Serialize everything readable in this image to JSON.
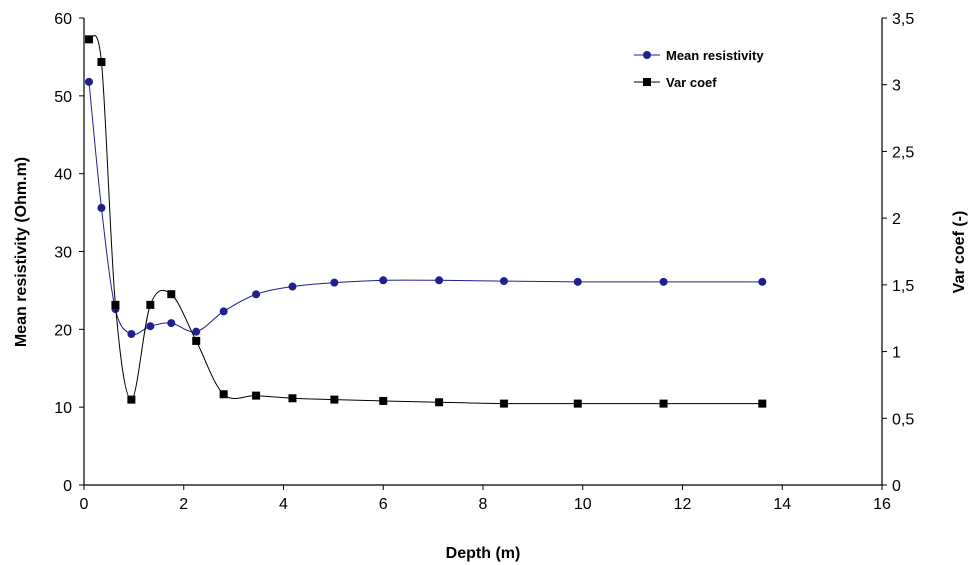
{
  "chart_data": {
    "type": "line",
    "xlabel": "Depth (m)",
    "ylabel_left": "Mean resistivity (Ohm.m)",
    "ylabel_right": "Var coef (-)",
    "xlim": [
      0,
      16
    ],
    "ylim_left": [
      0,
      60
    ],
    "ylim_right": [
      0,
      3.5
    ],
    "x_ticks": [
      "0",
      "2",
      "4",
      "6",
      "8",
      "10",
      "12",
      "14",
      "16"
    ],
    "y_left_ticks": [
      "0",
      "10",
      "20",
      "30",
      "40",
      "50",
      "60"
    ],
    "y_right_ticks": [
      "0",
      "0,5",
      "1",
      "1,5",
      "2",
      "2,5",
      "3",
      "3,5"
    ],
    "grid": false,
    "legend_position": "top-right",
    "series": [
      {
        "name": "Mean resistivity",
        "axis": "left",
        "color": "#1f1f8f",
        "marker": "circle",
        "x": [
          0.1,
          0.35,
          0.63,
          0.95,
          1.33,
          1.75,
          2.25,
          2.8,
          3.45,
          4.18,
          5.02,
          6.0,
          7.12,
          8.42,
          9.9,
          11.62,
          13.6
        ],
        "y": [
          51.8,
          35.6,
          22.6,
          19.4,
          20.4,
          20.8,
          19.7,
          22.3,
          24.5,
          25.5,
          26.0,
          26.3,
          26.3,
          26.2,
          26.1,
          26.1,
          26.1
        ]
      },
      {
        "name": "Var coef",
        "axis": "right",
        "color": "#000000",
        "marker": "square",
        "x": [
          0.1,
          0.35,
          0.63,
          0.95,
          1.33,
          1.75,
          2.25,
          2.8,
          3.45,
          4.18,
          5.02,
          6.0,
          7.12,
          8.42,
          9.9,
          11.62,
          13.6
        ],
        "y": [
          3.34,
          3.17,
          1.35,
          0.64,
          1.35,
          1.43,
          1.08,
          0.68,
          0.67,
          0.65,
          0.64,
          0.63,
          0.62,
          0.61,
          0.61,
          0.61,
          0.61
        ]
      }
    ]
  }
}
